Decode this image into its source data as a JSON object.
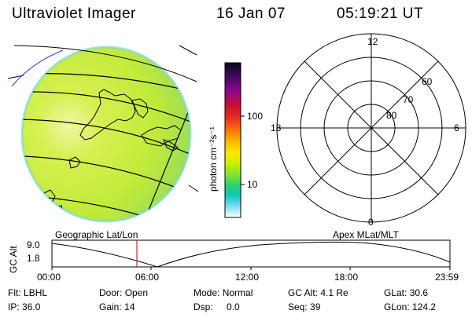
{
  "header": {
    "instrument": "Ultraviolet Imager",
    "date": "16 Jan 07",
    "time": "05:19:21 UT"
  },
  "colorbar": {
    "unit_label": "photon cm⁻²s⁻¹",
    "ticks": [
      "100",
      "10"
    ],
    "colors": [
      "#0a0a14",
      "#2a0a4a",
      "#6a0a9a",
      "#b01030",
      "#e02020",
      "#ff7a00",
      "#ffb000",
      "#ffe000",
      "#c8f000",
      "#80e040",
      "#20d060",
      "#00c0c0",
      "#60d8f0",
      "#ffffff"
    ]
  },
  "polar_plot": {
    "mlt_labels": {
      "top": "12",
      "left": "18",
      "right": "6",
      "bottom": "0"
    },
    "lat_labels": [
      "60",
      "70",
      "80"
    ],
    "caption": "Apex MLat/MLT"
  },
  "map": {
    "caption": "Geographic Lat/Lon",
    "fill_color": "#c8f032",
    "bright_color": "#ecf59a"
  },
  "altitude_plot": {
    "ylabel": "GC Alt",
    "yticks": [
      "9.0",
      "1.8"
    ],
    "xticks": [
      "00:00",
      "06:00",
      "12:00",
      "18:00",
      "23:59"
    ],
    "current_time_marker": "05:19",
    "marker_color": "#cc0000"
  },
  "info": [
    {
      "label": "Flt:",
      "value": "LBHL"
    },
    {
      "label": "Door:",
      "value": "Open"
    },
    {
      "label": "Mode:",
      "value": "Normal"
    },
    {
      "label": "GC Alt:",
      "value": "4.1 Re"
    },
    {
      "label": "GLat:",
      "value": "30.6"
    },
    {
      "label": "IP:",
      "value": "36.0"
    },
    {
      "label": "Gain:",
      "value": "14"
    },
    {
      "label": "Dsp:",
      "value": "0.0"
    },
    {
      "label": "Seq:",
      "value": "39"
    },
    {
      "label": "GLon:",
      "value": "124.2"
    }
  ]
}
